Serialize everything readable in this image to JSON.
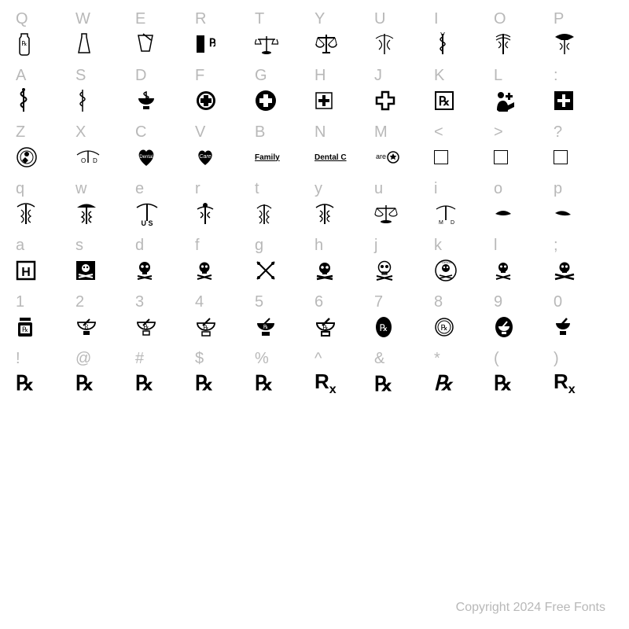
{
  "rows": [
    {
      "chars": [
        "Q",
        "W",
        "E",
        "R",
        "T",
        "Y",
        "U",
        "I",
        "O",
        "P"
      ],
      "glyphKeys": [
        "jar",
        "vial",
        "cup",
        "rx-jar",
        "scales-1",
        "scales-2",
        "caduceus-a",
        "vet-rod",
        "caduceus-b",
        "caduceus-c"
      ]
    },
    {
      "chars": [
        "A",
        "S",
        "D",
        "F",
        "G",
        "H",
        "J",
        "K",
        "L",
        ":"
      ],
      "glyphKeys": [
        "rod-1",
        "rod-2",
        "bowl",
        "cross-seal",
        "cross-circle",
        "cross-box",
        "cross-outline",
        "c-box",
        "helper",
        "plus-square"
      ]
    },
    {
      "chars": [
        "Z",
        "X",
        "C",
        "V",
        "B",
        "N",
        "M",
        "<",
        ">",
        "?"
      ],
      "glyphKeys": [
        "seal",
        "od-wings",
        "dentist-heart",
        "care-heart",
        "family",
        "dental-c",
        "are-star",
        "box",
        "box",
        "box"
      ]
    },
    {
      "chars": [
        "q",
        "w",
        "e",
        "r",
        "t",
        "y",
        "u",
        "i",
        "o",
        "p"
      ],
      "glyphKeys": [
        "cad-1",
        "cad-2",
        "cad-us",
        "cad-3",
        "cad-4",
        "cad-5",
        "scales-3",
        "cad-md",
        "wing-1",
        "wing-2"
      ]
    },
    {
      "chars": [
        "a",
        "s",
        "d",
        "f",
        "g",
        "h",
        "j",
        "k",
        "l",
        ";"
      ],
      "glyphKeys": [
        "h-box",
        "skull-flag",
        "skull-1",
        "skull-2",
        "swords",
        "skull-3",
        "skull-4",
        "poison-seal",
        "skull-5",
        "skull-6"
      ]
    },
    {
      "chars": [
        "1",
        "2",
        "3",
        "4",
        "5",
        "6",
        "7",
        "8",
        "9",
        "0"
      ],
      "glyphKeys": [
        "jar-rx-1",
        "mortar-r-1",
        "mortar-r-2",
        "mortar-r-3",
        "mortar-r-4",
        "mortar-r-5",
        "oval-rx",
        "rx-seal",
        "mortar-oval",
        "mortar-plain"
      ]
    },
    {
      "chars": [
        "!",
        "@",
        "#",
        "$",
        "%",
        "^",
        "&",
        "*",
        "(",
        ")"
      ],
      "glyphKeys": [
        "rx-1",
        "rx-2",
        "rx-3",
        "rx-4",
        "rx-5",
        "rx-6",
        "rx-7",
        "rx-8",
        "rx-9",
        "rx-10"
      ]
    }
  ],
  "copyright": "Copyright 2024 Free Fonts",
  "colors": {
    "label": "#b8b8b8",
    "glyph": "#000000",
    "background": "#ffffff"
  },
  "grid": {
    "cols": 10,
    "rows": 7,
    "cellHeight": 72
  }
}
